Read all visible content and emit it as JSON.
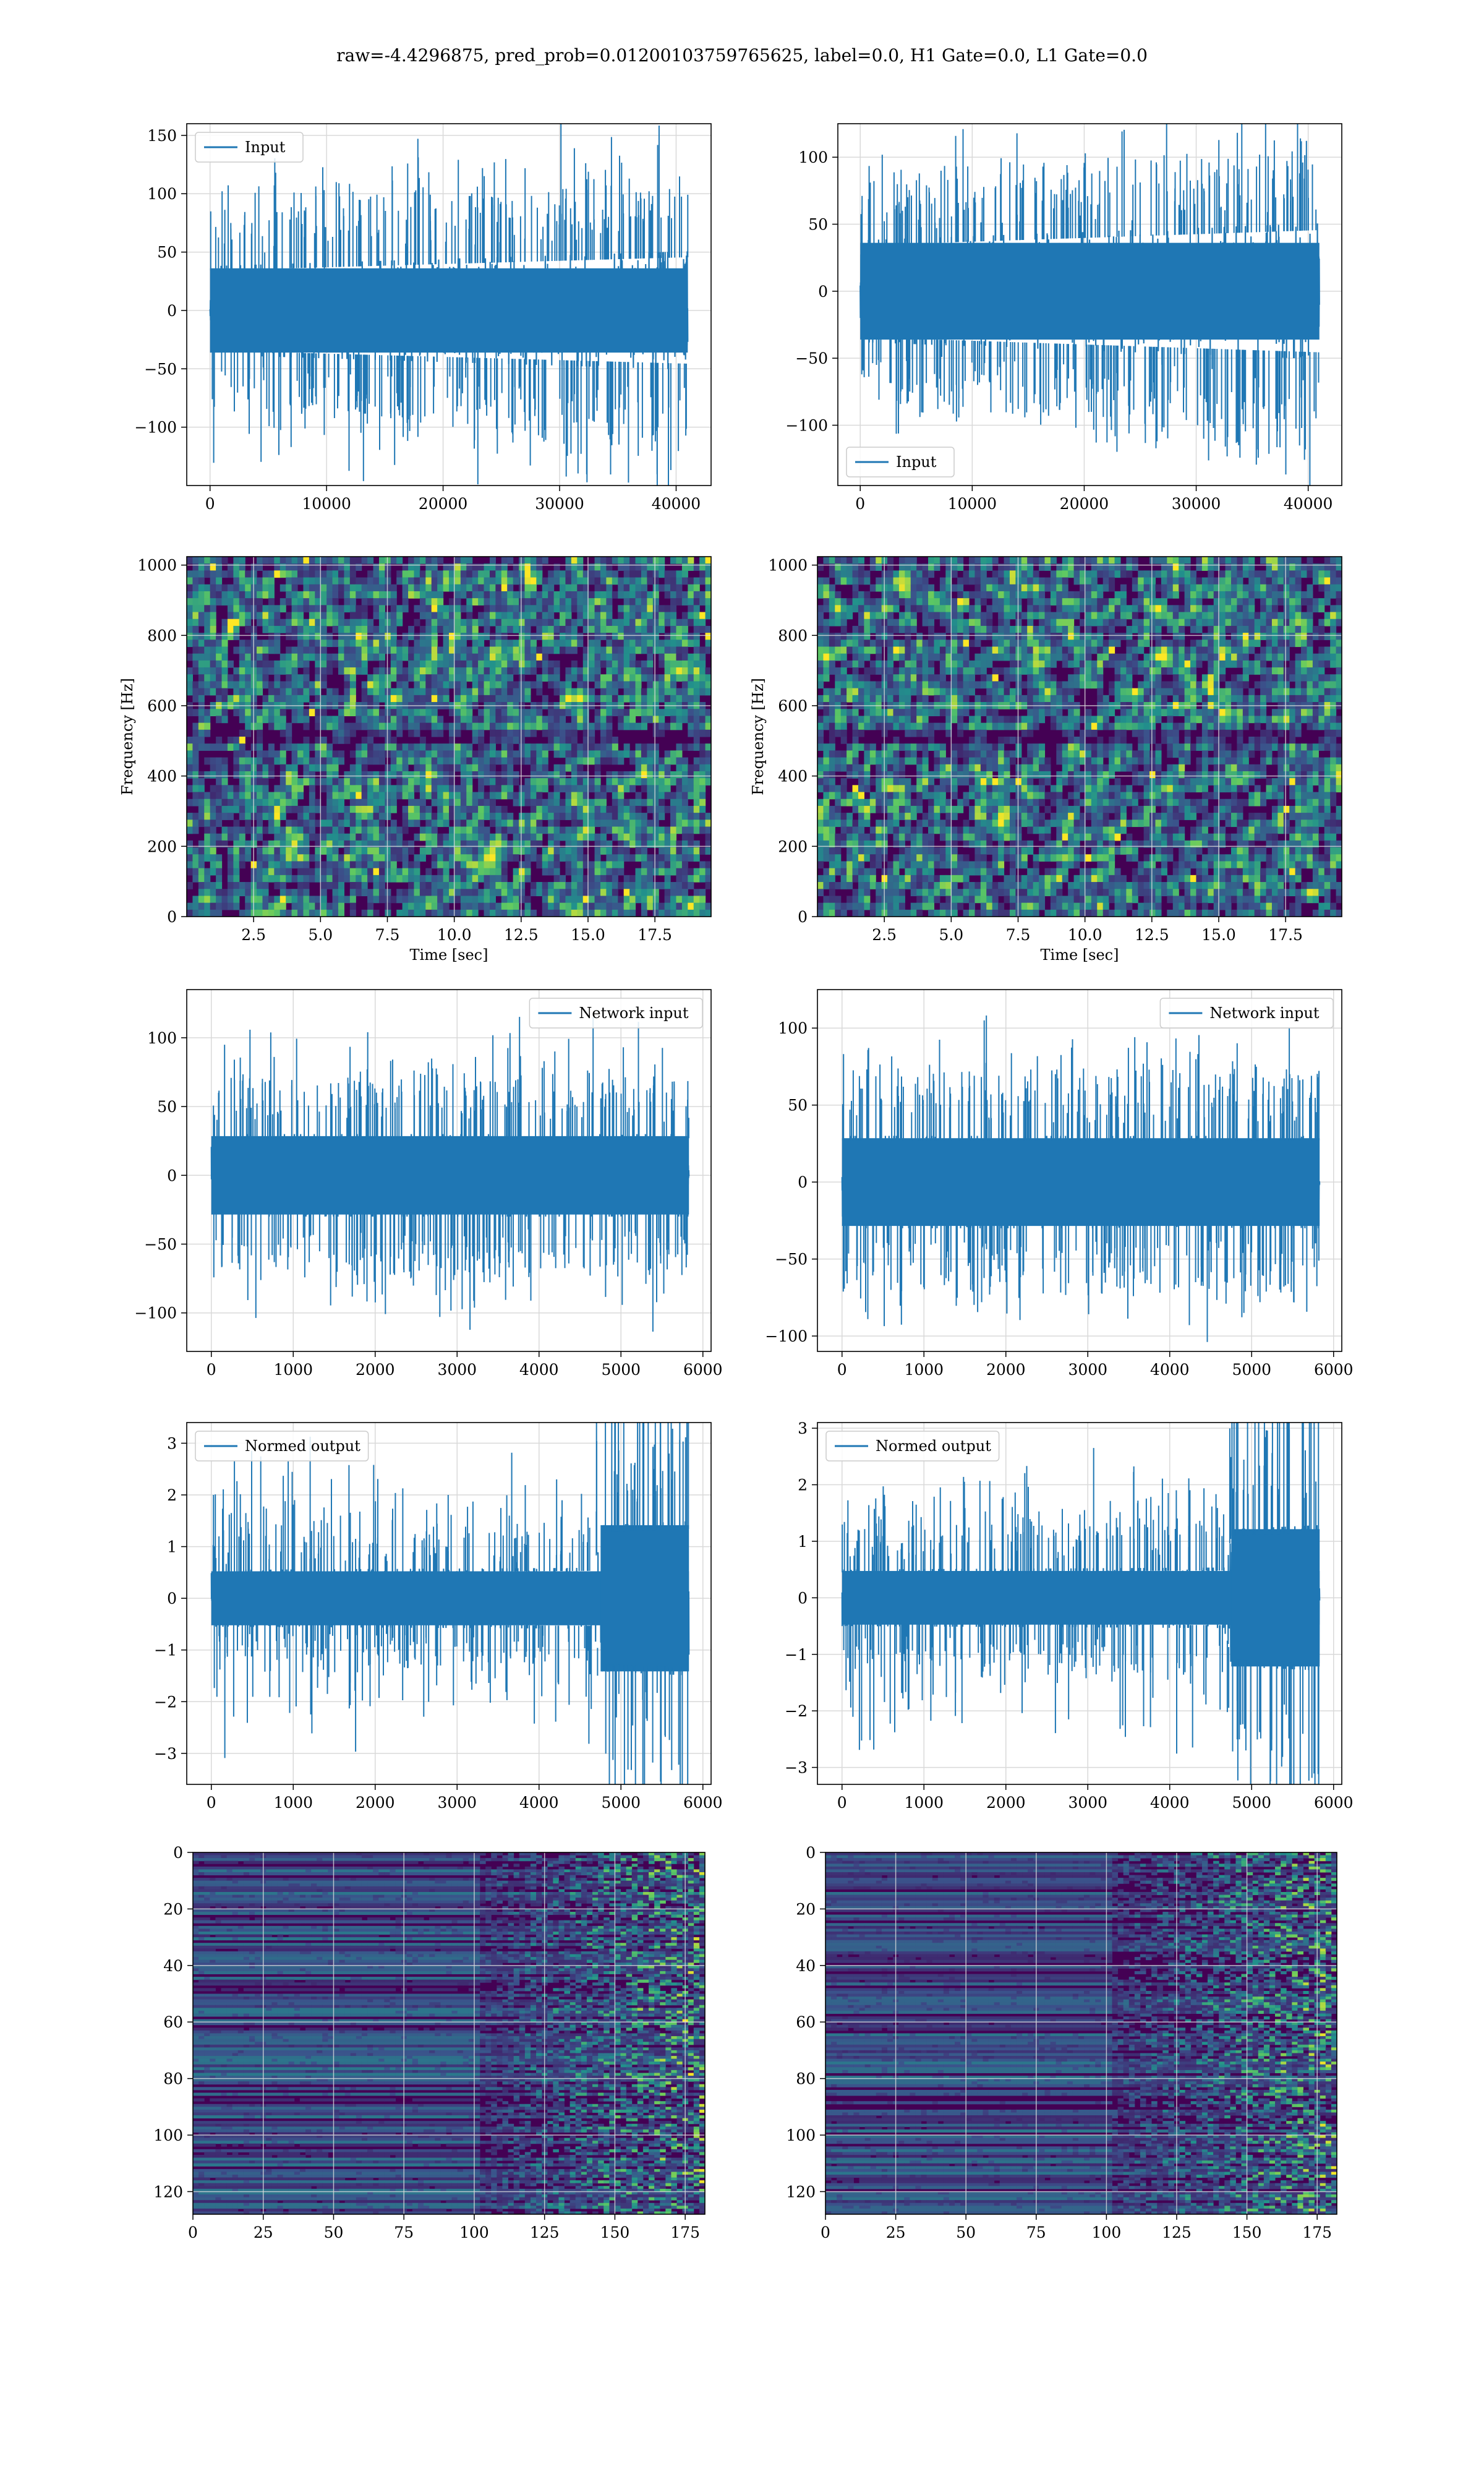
{
  "figure": {
    "title": "raw=-4.4296875, pred_prob=0.01200103759765625, label=0.0, H1 Gate=0.0, L1 Gate=0.0"
  },
  "colors": {
    "line": "#1f77b4",
    "grid": "#d9d9d9",
    "viridis": [
      "#440154",
      "#3b528b",
      "#21918c",
      "#5ec962",
      "#fde725"
    ]
  },
  "chart_data": [
    {
      "id": "h1-input",
      "type": "line",
      "legend": "Input",
      "legend_loc": "upper left",
      "xlim": [
        -2000,
        43000
      ],
      "ylim": [
        -150,
        160
      ],
      "xticks": [
        0,
        10000,
        20000,
        30000,
        40000
      ],
      "yticks": [
        -100,
        -50,
        0,
        50,
        100,
        150
      ],
      "x_range": [
        0,
        41000
      ],
      "env": [
        [
          0,
          45
        ],
        [
          1,
          60
        ]
      ],
      "core": 38,
      "spike": [
        85,
        145
      ],
      "seed": 11
    },
    {
      "id": "l1-input",
      "type": "line",
      "legend": "Input",
      "legend_loc": "lower left",
      "xlim": [
        -2000,
        43000
      ],
      "ylim": [
        -145,
        125
      ],
      "xticks": [
        0,
        10000,
        20000,
        30000,
        40000
      ],
      "yticks": [
        -100,
        -50,
        0,
        50,
        100
      ],
      "x_range": [
        0,
        41000
      ],
      "env": [
        [
          0,
          45
        ],
        [
          1,
          60
        ]
      ],
      "core": 38,
      "spike": [
        80,
        120
      ],
      "seed": 23
    },
    {
      "id": "h1-spectrogram",
      "type": "heatmap",
      "xlim": [
        0,
        19.6
      ],
      "ylim": [
        0,
        1024
      ],
      "xticks": [
        2.5,
        5.0,
        7.5,
        10.0,
        12.5,
        15.0,
        17.5
      ],
      "yticks": [
        0,
        200,
        400,
        600,
        800,
        1000
      ],
      "xlabel": "Time [sec]",
      "ylabel": "Frequency [Hz]",
      "seed": 5
    },
    {
      "id": "l1-spectrogram",
      "type": "heatmap",
      "xlim": [
        0,
        19.6
      ],
      "ylim": [
        0,
        1024
      ],
      "xticks": [
        2.5,
        5.0,
        7.5,
        10.0,
        12.5,
        15.0,
        17.5
      ],
      "yticks": [
        0,
        200,
        400,
        600,
        800,
        1000
      ],
      "xlabel": "Time [sec]",
      "ylabel": "Frequency [Hz]",
      "seed": 9
    },
    {
      "id": "h1-network-input",
      "type": "line",
      "legend": "Network input",
      "legend_loc": "upper right",
      "xlim": [
        -300,
        6100
      ],
      "ylim": [
        -128,
        135
      ],
      "xticks": [
        0,
        1000,
        2000,
        3000,
        4000,
        5000,
        6000
      ],
      "yticks": [
        -100,
        -50,
        0,
        50,
        100
      ],
      "x_range": [
        0,
        5830
      ],
      "env": [
        [
          0,
          35
        ],
        [
          1,
          35
        ]
      ],
      "core": 30,
      "spike": [
        70,
        120
      ],
      "seed": 31
    },
    {
      "id": "l1-network-input",
      "type": "line",
      "legend": "Network input",
      "legend_loc": "upper right",
      "xlim": [
        -300,
        6100
      ],
      "ylim": [
        -110,
        125
      ],
      "xticks": [
        0,
        1000,
        2000,
        3000,
        4000,
        5000,
        6000
      ],
      "yticks": [
        -100,
        -50,
        0,
        50,
        100
      ],
      "x_range": [
        0,
        5830
      ],
      "env": [
        [
          0,
          35
        ],
        [
          1,
          35
        ]
      ],
      "core": 30,
      "spike": [
        70,
        110
      ],
      "seed": 37
    },
    {
      "id": "h1-normed-output",
      "type": "line",
      "legend": "Normed output",
      "legend_loc": "upper left",
      "xlim": [
        -300,
        6100
      ],
      "ylim": [
        -3.6,
        3.4
      ],
      "xticks": [
        0,
        1000,
        2000,
        3000,
        4000,
        5000,
        6000
      ],
      "yticks": [
        -3,
        -2,
        -1,
        0,
        1,
        2,
        3
      ],
      "x_range": [
        0,
        5830
      ],
      "env": [
        [
          0,
          0.7
        ],
        [
          0.8,
          0.75
        ],
        [
          0.815,
          1.8
        ],
        [
          1,
          1.9
        ]
      ],
      "core": 0.55,
      "spike": [
        1.2,
        3.1
      ],
      "seed": 41
    },
    {
      "id": "l1-normed-output",
      "type": "line",
      "legend": "Normed output",
      "legend_loc": "upper left",
      "xlim": [
        -300,
        6100
      ],
      "ylim": [
        -3.3,
        3.1
      ],
      "xticks": [
        0,
        1000,
        2000,
        3000,
        4000,
        5000,
        6000
      ],
      "yticks": [
        -3,
        -2,
        -1,
        0,
        1,
        2,
        3
      ],
      "x_range": [
        0,
        5830
      ],
      "env": [
        [
          0,
          0.7
        ],
        [
          0.8,
          0.75
        ],
        [
          0.815,
          1.7
        ],
        [
          1,
          1.8
        ]
      ],
      "core": 0.5,
      "spike": [
        1.2,
        2.8
      ],
      "seed": 47
    },
    {
      "id": "h1-feature-map",
      "type": "heatmap",
      "xlim": [
        0,
        182
      ],
      "ylim": [
        128,
        0
      ],
      "xticks": [
        0,
        25,
        50,
        75,
        100,
        125,
        150,
        175
      ],
      "yticks": [
        0,
        20,
        40,
        60,
        80,
        100,
        120
      ],
      "seed": 13
    },
    {
      "id": "l1-feature-map",
      "type": "heatmap",
      "xlim": [
        0,
        182
      ],
      "ylim": [
        128,
        0
      ],
      "xticks": [
        0,
        25,
        50,
        75,
        100,
        125,
        150,
        175
      ],
      "yticks": [
        0,
        20,
        40,
        60,
        80,
        100,
        120
      ],
      "seed": 17
    }
  ]
}
